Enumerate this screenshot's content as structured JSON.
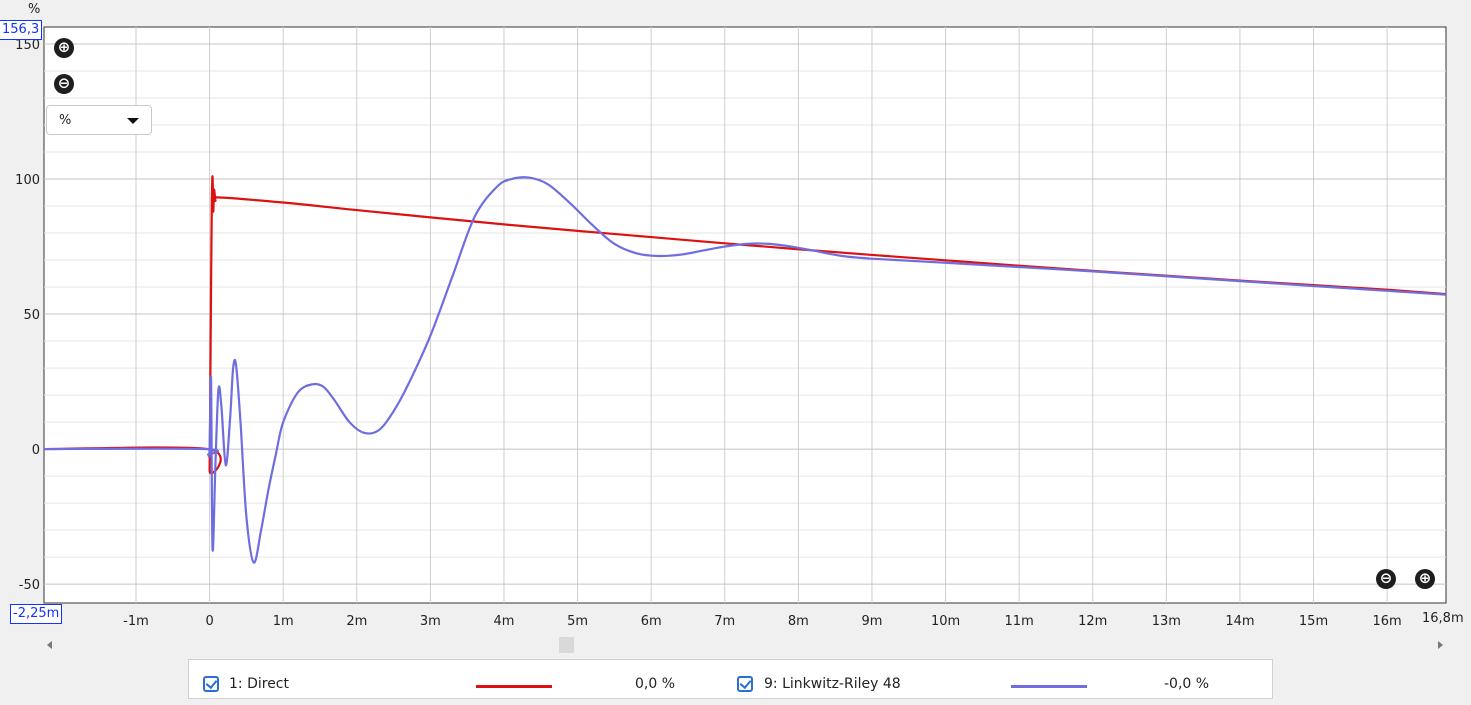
{
  "chart_data": {
    "type": "line",
    "title": "",
    "ylabel": "%",
    "xlabel": "",
    "xlim": [
      -2.25,
      16.8
    ],
    "ylim": [
      -57,
      156.3
    ],
    "grid": true,
    "x_ticks": [
      "-1m",
      "0",
      "1m",
      "2m",
      "3m",
      "4m",
      "5m",
      "6m",
      "7m",
      "8m",
      "9m",
      "10m",
      "11m",
      "12m",
      "13m",
      "14m",
      "15m",
      "16m"
    ],
    "x_tick_values": [
      -1,
      0,
      1,
      2,
      3,
      4,
      5,
      6,
      7,
      8,
      9,
      10,
      11,
      12,
      13,
      14,
      15,
      16
    ],
    "y_ticks": [
      "-50",
      "0",
      "50",
      "100",
      "150"
    ],
    "y_tick_values": [
      -50,
      0,
      50,
      100,
      150
    ],
    "range_labels": {
      "y_max": "156,3",
      "x_min": "-2,25m",
      "x_max": "16,8m"
    },
    "series": [
      {
        "name": "1: Direct",
        "color": "#dd1111",
        "x": [
          -2.25,
          -0.02,
          0.0,
          0.01,
          0.02,
          0.03,
          0.04,
          0.05,
          0.06,
          0.08,
          0.1,
          1,
          2,
          3,
          4,
          5,
          6,
          7,
          8,
          9,
          10,
          11,
          12,
          13,
          14,
          15,
          16,
          16.8
        ],
        "y": [
          0,
          0,
          -8,
          25,
          60,
          90,
          101,
          88,
          96,
          92,
          93.2,
          91.3,
          88.5,
          85.8,
          83.2,
          80.8,
          78.5,
          76.2,
          74.0,
          71.9,
          69.9,
          67.9,
          66.0,
          64.2,
          62.4,
          60.7,
          59.0,
          57.4
        ]
      },
      {
        "name": "9: Linkwitz-Riley 48",
        "color": "#6e6ee0",
        "x": [
          -2.25,
          -0.06,
          -0.02,
          0.0,
          0.02,
          0.04,
          0.08,
          0.12,
          0.16,
          0.22,
          0.28,
          0.32,
          0.36,
          0.42,
          0.5,
          0.6,
          0.7,
          0.8,
          0.9,
          1.0,
          1.2,
          1.4,
          1.55,
          1.7,
          1.9,
          2.1,
          2.3,
          2.5,
          2.7,
          3.0,
          3.3,
          3.6,
          3.9,
          4.1,
          4.35,
          4.6,
          4.9,
          5.2,
          5.5,
          5.8,
          6.1,
          6.4,
          6.7,
          7.0,
          7.3,
          7.6,
          7.9,
          8.2,
          8.6,
          9.0,
          10,
          11,
          12,
          13,
          14,
          15,
          16,
          16.8
        ],
        "y": [
          0,
          0,
          -2,
          0,
          26,
          -37,
          -5,
          22,
          16,
          -6,
          12,
          30,
          31,
          10,
          -25,
          -42,
          -30,
          -15,
          -2,
          10,
          21,
          24,
          23,
          18,
          10,
          6,
          7,
          14,
          24,
          42,
          64,
          86,
          97,
          100,
          100.5,
          98,
          91,
          83,
          76,
          72.5,
          71.5,
          72,
          73.5,
          75,
          76,
          76,
          75,
          73.5,
          71.5,
          70.5,
          69,
          67.4,
          65.8,
          64,
          62.2,
          60.4,
          58.6,
          57.2
        ]
      }
    ]
  },
  "controls": {
    "zoom_in": "⊕",
    "zoom_out": "⊖",
    "unit_select": "%"
  },
  "legend": [
    {
      "label": "1: Direct",
      "value": "0,0 %",
      "color": "#dd1111",
      "checked": true
    },
    {
      "label": "9: Linkwitz-Riley 48",
      "value": "-0,0 %",
      "color": "#6e6ee0",
      "checked": true
    }
  ]
}
